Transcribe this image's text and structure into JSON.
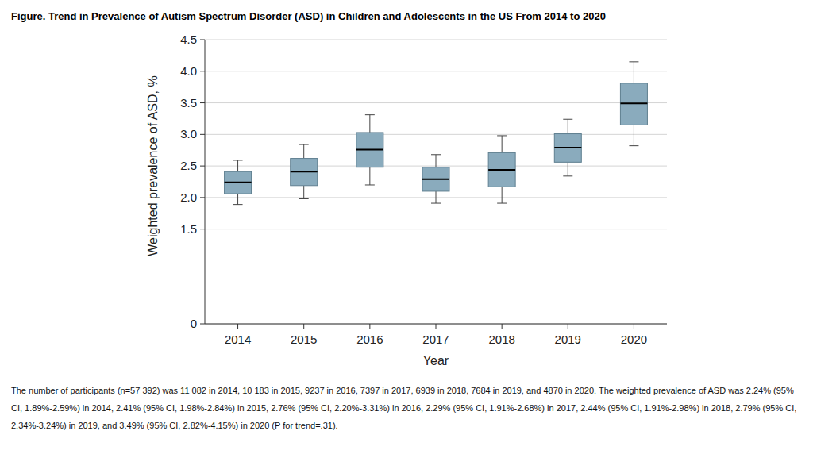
{
  "chart_data": {
    "type": "box",
    "title": "Figure. Trend in Prevalence of Autism Spectrum Disorder (ASD) in Children and Adolescents in the US From 2014 to 2020",
    "x_label": "Year",
    "y_label": "Weighted prevalence of ASD, %",
    "caption": "The number of participants (n=57 392) was 11 082 in 2014, 10 183 in 2015, 9237 in 2016, 7397 in 2017, 6939 in 2018, 7684 in 2019, and 4870 in 2020. The weighted prevalence of ASD was 2.24% (95% CI, 1.89%-2.59%) in 2014, 2.41% (95% CI, 1.98%-2.84%) in 2015, 2.76% (95% CI, 2.20%-3.31%) in 2016, 2.29% (95% CI, 1.91%-2.68%) in 2017, 2.44% (95% CI, 1.91%-2.98%) in 2018, 2.79% (95% CI, 2.34%-3.24%) in 2019, and 3.49% (95% CI, 2.82%-4.15%) in 2020 (P for trend=.31).",
    "categories": [
      "2014",
      "2015",
      "2016",
      "2017",
      "2018",
      "2019",
      "2020"
    ],
    "low": [
      1.89,
      1.98,
      2.2,
      1.91,
      1.91,
      2.34,
      2.82
    ],
    "q1": [
      2.06,
      2.19,
      2.48,
      2.1,
      2.17,
      2.56,
      3.15
    ],
    "median": [
      2.24,
      2.41,
      2.76,
      2.29,
      2.44,
      2.79,
      3.49
    ],
    "q3": [
      2.41,
      2.62,
      3.03,
      2.48,
      2.71,
      3.01,
      3.81
    ],
    "high": [
      2.59,
      2.84,
      3.31,
      2.68,
      2.98,
      3.24,
      4.15
    ],
    "color": "#8aabbd",
    "ylim": [
      0,
      4.5
    ],
    "yticks": [
      0,
      1.5,
      {
        "value": 2,
        "label": "2.0"
      },
      2.5,
      {
        "value": 3,
        "label": "3.0"
      },
      3.5,
      {
        "value": 4,
        "label": "4.0"
      },
      4.5
    ],
    "grid": true
  }
}
